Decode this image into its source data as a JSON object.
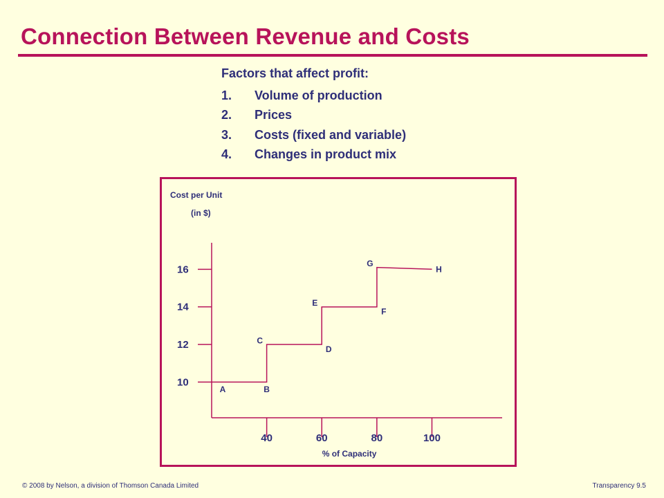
{
  "title": "Connection Between Revenue and Costs",
  "factors": {
    "heading": "Factors that affect profit:",
    "items": [
      {
        "num": "1.",
        "text": "Volume of production"
      },
      {
        "num": "2.",
        "text": "Prices"
      },
      {
        "num": "3.",
        "text": "Costs (fixed and variable)"
      },
      {
        "num": "4.",
        "text": "Changes in product mix"
      }
    ]
  },
  "chart_data": {
    "type": "line",
    "ylabel_line1": "Cost per Unit",
    "ylabel_line2": "(in $)",
    "xlabel": "% of Capacity",
    "x_ticks": [
      "40",
      "60",
      "80",
      "100"
    ],
    "y_ticks": [
      "10",
      "12",
      "14",
      "16"
    ],
    "xlim": [
      20,
      125
    ],
    "ylim": [
      8.1,
      17.3
    ],
    "step_path": [
      [
        20,
        10
      ],
      [
        40,
        10
      ],
      [
        40,
        12
      ],
      [
        60,
        12
      ],
      [
        60,
        14
      ],
      [
        80,
        14
      ],
      [
        80,
        16.1
      ],
      [
        100,
        16
      ]
    ],
    "point_labels": [
      {
        "label": "A",
        "x": 24,
        "y": 9.6
      },
      {
        "label": "B",
        "x": 40,
        "y": 9.6
      },
      {
        "label": "C",
        "x": 37.5,
        "y": 12.2
      },
      {
        "label": "D",
        "x": 62.5,
        "y": 11.75
      },
      {
        "label": "E",
        "x": 57.5,
        "y": 14.2
      },
      {
        "label": "F",
        "x": 82.5,
        "y": 13.75
      },
      {
        "label": "G",
        "x": 77.5,
        "y": 16.3
      },
      {
        "label": "H",
        "x": 102.5,
        "y": 16
      }
    ]
  },
  "footer": {
    "left": "© 2008 by Nelson, a division of Thomson Canada Limited",
    "right": "Transparency 9.5"
  },
  "colors": {
    "background": "#ffffe0",
    "accent": "#b7135a",
    "text": "#2e2e78"
  }
}
